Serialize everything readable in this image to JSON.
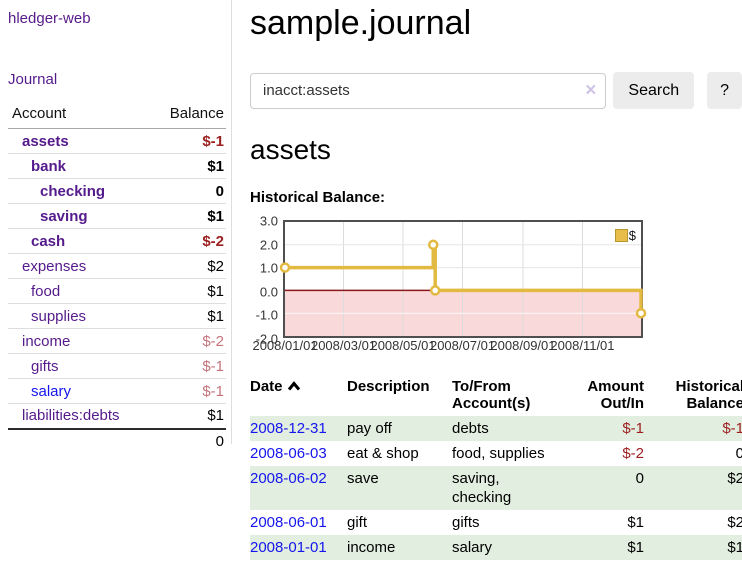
{
  "app": {
    "brand": "hledger-web",
    "nav_journal": "Journal"
  },
  "sidebar": {
    "headers": {
      "account": "Account",
      "balance": "Balance"
    },
    "accounts": [
      {
        "name": "assets",
        "depth": 1,
        "bold": true,
        "balance": "$-1",
        "balance_style": "negative-bold"
      },
      {
        "name": "bank",
        "depth": 2,
        "bold": true,
        "balance": "$1",
        "balance_style": "positive-bold"
      },
      {
        "name": "checking",
        "depth": 3,
        "bold": true,
        "balance": "0",
        "balance_style": "positive-bold"
      },
      {
        "name": "saving",
        "depth": 3,
        "bold": true,
        "balance": "$1",
        "balance_style": "positive-bold"
      },
      {
        "name": "cash",
        "depth": 2,
        "bold": true,
        "balance": "$-2",
        "balance_style": "negative-bold"
      },
      {
        "name": "expenses",
        "depth": 1,
        "bold": false,
        "balance": "$2",
        "balance_style": "positive"
      },
      {
        "name": "food",
        "depth": 2,
        "bold": false,
        "balance": "$1",
        "balance_style": "positive"
      },
      {
        "name": "supplies",
        "depth": 2,
        "bold": false,
        "balance": "$1",
        "balance_style": "positive"
      },
      {
        "name": "income",
        "depth": 1,
        "bold": false,
        "balance": "$-2",
        "balance_style": "negative-muted"
      },
      {
        "name": "gifts",
        "depth": 2,
        "bold": false,
        "balance": "$-1",
        "balance_style": "negative-muted"
      },
      {
        "name": "salary",
        "depth": 2,
        "bold": false,
        "balance": "$-1",
        "balance_style": "negative-muted",
        "link_color": "blue"
      },
      {
        "name": "liabilities:debts",
        "depth": 1,
        "bold": false,
        "balance": "$1",
        "balance_style": "positive"
      }
    ],
    "total": "0"
  },
  "header": {
    "title": "sample.journal"
  },
  "search": {
    "value": "inacct:assets",
    "clear_icon": "×",
    "button": "Search",
    "help_button": "?"
  },
  "account_page": {
    "title": "assets",
    "chart_label": "Historical Balance:"
  },
  "chart_data": {
    "type": "line",
    "step": true,
    "title": "Historical Balance",
    "legend": "$",
    "legend_position": "top-right",
    "grid": true,
    "ylim": [
      -2,
      3
    ],
    "yticks": [
      "3.0",
      "2.0",
      "1.0",
      "0.0",
      "-1.0",
      "-2.0"
    ],
    "xticks": [
      "2008/01/01",
      "2008/03/01",
      "2008/05/01",
      "2008/07/01",
      "2008/09/01",
      "2008/11/01"
    ],
    "x_range": [
      "2008-01-01",
      "2008-12-31"
    ],
    "series": [
      {
        "name": "$",
        "color": "#e3ba41",
        "points": [
          {
            "x": "2008-01-01",
            "y": 1
          },
          {
            "x": "2008-06-01",
            "y": 2
          },
          {
            "x": "2008-06-03",
            "y": 0
          },
          {
            "x": "2008-12-31",
            "y": -1
          }
        ]
      }
    ],
    "negative_region_color": "#f9d9d9",
    "zero_line_color": "#8c1717"
  },
  "register": {
    "columns": {
      "date": "Date",
      "description": "Description",
      "accounts": "To/From Account(s)",
      "amount": "Amount Out/In",
      "balance": "Historical Balance"
    },
    "rows": [
      {
        "date": "2008-12-31",
        "description": "pay off",
        "accounts": "debts",
        "amount": "$-1",
        "amount_neg": true,
        "balance": "$-1",
        "balance_neg": true,
        "highlight": true
      },
      {
        "date": "2008-06-03",
        "description": "eat & shop",
        "accounts": "food, supplies",
        "amount": "$-2",
        "amount_neg": true,
        "balance": "0",
        "balance_neg": false,
        "highlight": false
      },
      {
        "date": "2008-06-02",
        "description": "save",
        "accounts": "saving, checking",
        "amount": "0",
        "amount_neg": false,
        "balance": "$2",
        "balance_neg": false,
        "highlight": true
      },
      {
        "date": "2008-06-01",
        "description": "gift",
        "accounts": "gifts",
        "amount": "$1",
        "amount_neg": false,
        "balance": "$2",
        "balance_neg": false,
        "highlight": false
      },
      {
        "date": "2008-01-01",
        "description": "income",
        "accounts": "salary",
        "amount": "$1",
        "amount_neg": false,
        "balance": "$1",
        "balance_neg": false,
        "highlight": true
      }
    ]
  }
}
